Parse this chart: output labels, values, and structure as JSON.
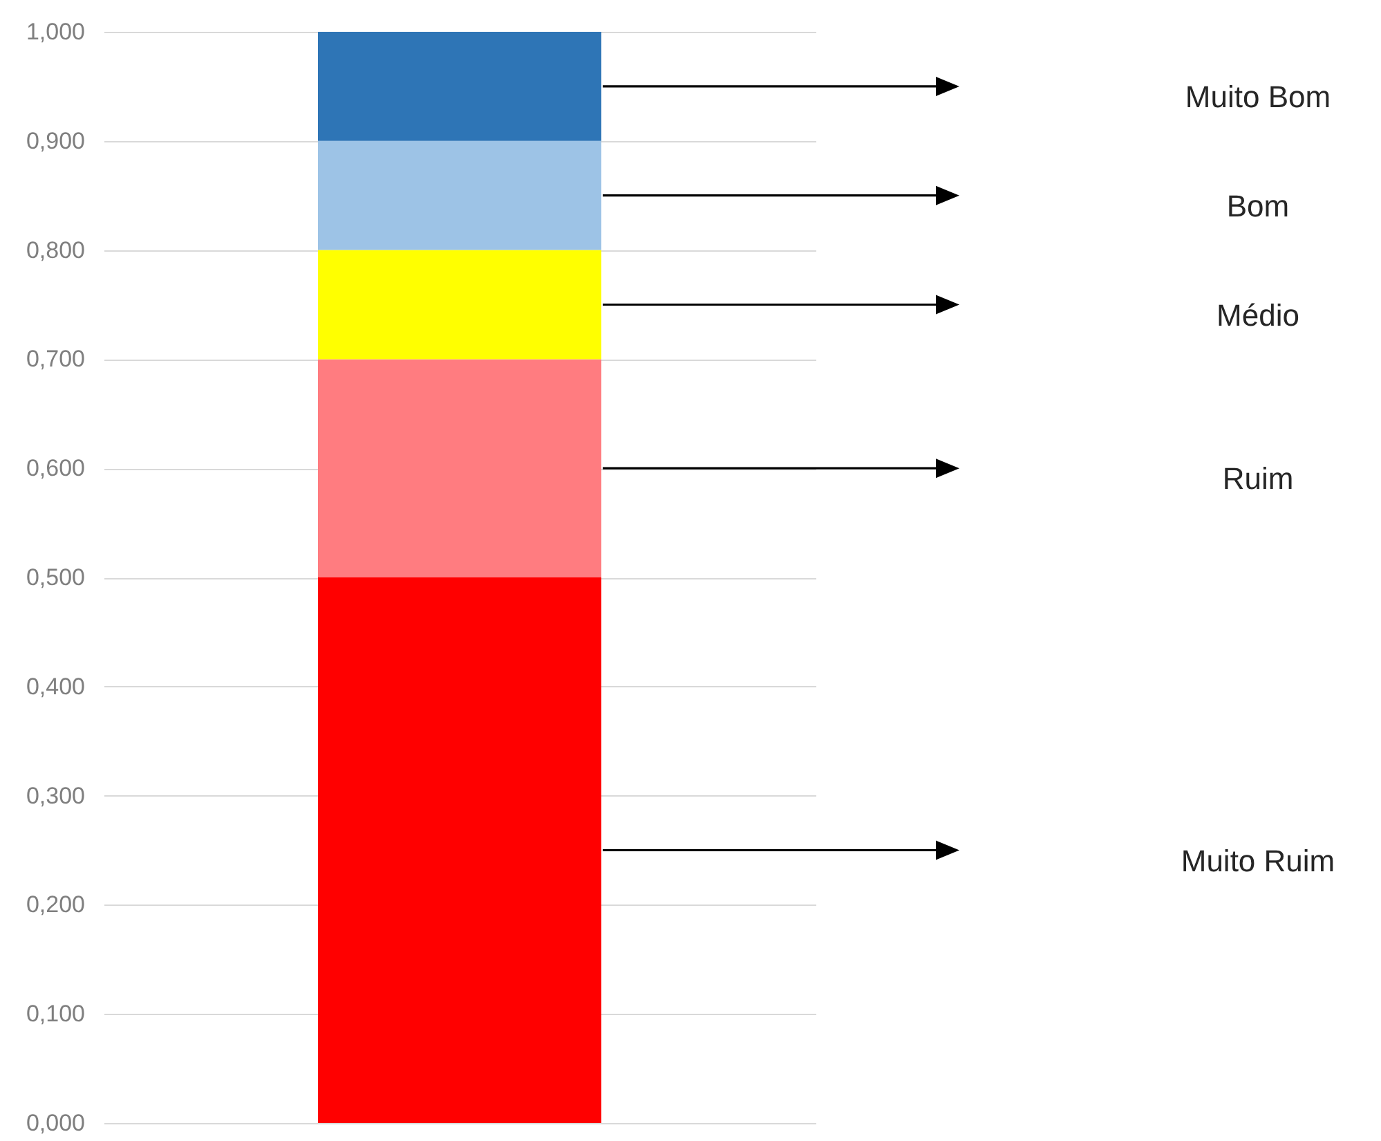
{
  "chart_data": {
    "type": "bar",
    "stacked": true,
    "categories": [
      null
    ],
    "series": [
      {
        "name": "Muito Ruim",
        "color": "#ff0000",
        "values": [
          0.5
        ]
      },
      {
        "name": "Ruim",
        "color": "#ff7c80",
        "values": [
          0.2
        ]
      },
      {
        "name": "Médio",
        "color": "#ffff00",
        "values": [
          0.1
        ]
      },
      {
        "name": "Bom",
        "color": "#9dc3e6",
        "values": [
          0.1
        ]
      },
      {
        "name": "Muito Bom",
        "color": "#2e75b6",
        "values": [
          0.1
        ]
      }
    ],
    "ylim": [
      0,
      1
    ],
    "yticks": [
      {
        "value": 0,
        "label": "0,000"
      },
      {
        "value": 0.1,
        "label": "0,100"
      },
      {
        "value": 0.2,
        "label": "0,200"
      },
      {
        "value": 0.3,
        "label": "0,300"
      },
      {
        "value": 0.4,
        "label": "0,400"
      },
      {
        "value": 0.5,
        "label": "0,500"
      },
      {
        "value": 0.6,
        "label": "0,600"
      },
      {
        "value": 0.7,
        "label": "0,700"
      },
      {
        "value": 0.8,
        "label": "0,800"
      },
      {
        "value": 0.9,
        "label": "0,900"
      },
      {
        "value": 1,
        "label": "1,000"
      }
    ],
    "grid": "y",
    "legend": false
  }
}
